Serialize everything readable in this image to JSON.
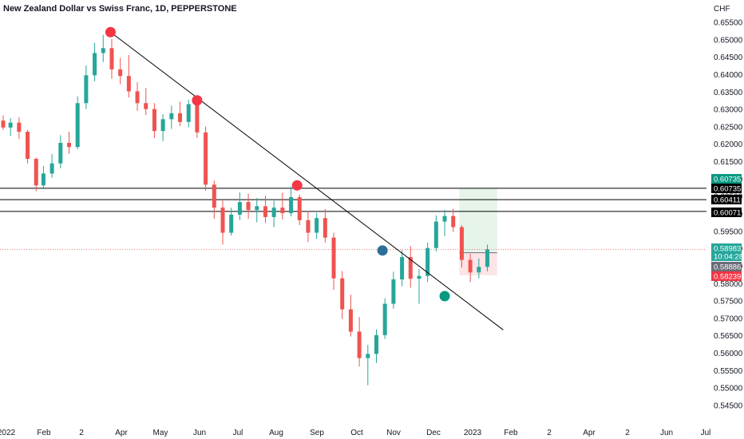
{
  "header": {
    "title": "New Zealand Dollar vs Swiss Franc, 1D, PEPPERSTONE"
  },
  "price_axis": {
    "currency": "CHF",
    "ticks": [
      "0.65500",
      "0.65000",
      "0.64500",
      "0.64000",
      "0.63500",
      "0.63000",
      "0.62500",
      "0.62000",
      "0.61500",
      "0.61000",
      "0.60500",
      "0.60000",
      "0.59500",
      "0.59000",
      "0.58500",
      "0.58000",
      "0.57500",
      "0.57000",
      "0.56500",
      "0.56000",
      "0.55500",
      "0.55000",
      "0.54500"
    ]
  },
  "time_axis": {
    "labels": [
      "2022",
      "Feb",
      "2",
      "Apr",
      "May",
      "Jun",
      "Jul",
      "Aug",
      "Sep",
      "Oct",
      "Nov",
      "Dec",
      "2023",
      "Feb",
      "2",
      "Apr",
      "2",
      "Jun",
      "Jul"
    ]
  },
  "price_tags": [
    {
      "label": "0.60735",
      "value": 0.60735,
      "bg": "#089981"
    },
    {
      "label": "0.60735",
      "value": 0.60735,
      "bg": "#000000"
    },
    {
      "label": "0.60411",
      "value": 0.60411,
      "bg": "#000000"
    },
    {
      "label": "0.60071",
      "value": 0.60071,
      "bg": "#000000"
    },
    {
      "label": "0.58983",
      "value": 0.58983,
      "bg": "#26a69a",
      "sub": "10:04:28"
    },
    {
      "label": "0.58886",
      "value": 0.58886,
      "bg": "#6a6d78"
    },
    {
      "label": "0.58239",
      "value": 0.58239,
      "bg": "#f23645"
    }
  ],
  "colors": {
    "up": "#26a69a",
    "down": "#ef5350",
    "trendline": "#000000",
    "marker_red": "#f23645",
    "marker_teal": "#089981",
    "marker_blue": "#2a6f97",
    "profit_zone": "#e6f4ea",
    "loss_zone": "#fde4e6"
  },
  "chart_data": {
    "type": "candlestick",
    "title": "New Zealand Dollar vs Swiss Franc, 1D, PEPPERSTONE",
    "y_unit": "CHF",
    "ylim": [
      0.543,
      0.657
    ],
    "x_range": [
      "2022-01-01",
      "2023-07-31"
    ],
    "grid": false,
    "trendline": {
      "from": {
        "date": "2022-03-30",
        "price": 0.6522
      },
      "to": {
        "date": "2023-02-15",
        "price": 0.5667
      }
    },
    "horizontal_levels": [
      0.60735,
      0.60411,
      0.60071
    ],
    "current_price": 0.58983,
    "position": {
      "entry": 0.58886,
      "target": 0.60735,
      "stop": 0.58239,
      "start": "2023-01-10",
      "end": "2023-02-10"
    },
    "markers": [
      {
        "date": "2022-03-30",
        "price": 0.6522,
        "color": "red"
      },
      {
        "date": "2022-06-09",
        "price": 0.6326,
        "color": "red"
      },
      {
        "date": "2022-08-30",
        "price": 0.6082,
        "color": "red"
      },
      {
        "date": "2022-11-08",
        "price": 0.5895,
        "color": "blue"
      },
      {
        "date": "2022-12-29",
        "price": 0.5764,
        "color": "teal"
      }
    ],
    "candles": [
      [
        "2022-01-01",
        0.6268,
        0.6283,
        0.6241,
        0.6248
      ],
      [
        "2022-01-07",
        0.6248,
        0.6275,
        0.6224,
        0.6262
      ],
      [
        "2022-01-14",
        0.6262,
        0.6278,
        0.6215,
        0.6236
      ],
      [
        "2022-01-21",
        0.6236,
        0.6241,
        0.6145,
        0.6158
      ],
      [
        "2022-01-28",
        0.6158,
        0.6162,
        0.6065,
        0.6082
      ],
      [
        "2022-02-03",
        0.6082,
        0.6138,
        0.6071,
        0.6116
      ],
      [
        "2022-02-10",
        0.6116,
        0.6172,
        0.6104,
        0.6145
      ],
      [
        "2022-02-17",
        0.6145,
        0.6226,
        0.6131,
        0.6204
      ],
      [
        "2022-02-24",
        0.6204,
        0.6236,
        0.6173,
        0.6192
      ],
      [
        "2022-03-03",
        0.6192,
        0.6338,
        0.6186,
        0.6318
      ],
      [
        "2022-03-10",
        0.6318,
        0.6426,
        0.6301,
        0.6398
      ],
      [
        "2022-03-17",
        0.6398,
        0.6491,
        0.6381,
        0.6462
      ],
      [
        "2022-03-24",
        0.6462,
        0.6514,
        0.6436,
        0.6476
      ],
      [
        "2022-03-31",
        0.6476,
        0.6502,
        0.6388,
        0.6415
      ],
      [
        "2022-04-07",
        0.6415,
        0.6448,
        0.6372,
        0.6396
      ],
      [
        "2022-04-14",
        0.6396,
        0.6456,
        0.6334,
        0.6352
      ],
      [
        "2022-04-21",
        0.6352,
        0.6378,
        0.6296,
        0.6318
      ],
      [
        "2022-04-28",
        0.6318,
        0.6362,
        0.6284,
        0.6301
      ],
      [
        "2022-05-05",
        0.6301,
        0.6318,
        0.6218,
        0.6238
      ],
      [
        "2022-05-12",
        0.6238,
        0.6286,
        0.6209,
        0.6272
      ],
      [
        "2022-05-19",
        0.6272,
        0.6311,
        0.6244,
        0.6289
      ],
      [
        "2022-05-26",
        0.6289,
        0.6322,
        0.6252,
        0.6264
      ],
      [
        "2022-06-02",
        0.6264,
        0.6328,
        0.6248,
        0.6315
      ],
      [
        "2022-06-09",
        0.6315,
        0.6326,
        0.6218,
        0.6234
      ],
      [
        "2022-06-16",
        0.6234,
        0.6251,
        0.6066,
        0.6084
      ],
      [
        "2022-06-23",
        0.6084,
        0.6095,
        0.5986,
        0.6018
      ],
      [
        "2022-06-30",
        0.6018,
        0.6038,
        0.5912,
        0.5946
      ],
      [
        "2022-07-07",
        0.5946,
        0.6018,
        0.5938,
        0.5998
      ],
      [
        "2022-07-14",
        0.5998,
        0.6062,
        0.5982,
        0.6034
      ],
      [
        "2022-07-21",
        0.6034,
        0.6058,
        0.5986,
        0.6011
      ],
      [
        "2022-07-28",
        0.6011,
        0.6046,
        0.5976,
        0.6022
      ],
      [
        "2022-08-04",
        0.6022,
        0.6052,
        0.5974,
        0.5991
      ],
      [
        "2022-08-11",
        0.5991,
        0.6038,
        0.5962,
        0.6018
      ],
      [
        "2022-08-18",
        0.6018,
        0.6061,
        0.5984,
        0.6002
      ],
      [
        "2022-08-25",
        0.6002,
        0.6078,
        0.5993,
        0.6048
      ],
      [
        "2022-09-01",
        0.6048,
        0.6056,
        0.5968,
        0.5982
      ],
      [
        "2022-09-08",
        0.5982,
        0.6008,
        0.5919,
        0.5946
      ],
      [
        "2022-09-15",
        0.5946,
        0.6003,
        0.5928,
        0.5988
      ],
      [
        "2022-09-22",
        0.5988,
        0.6014,
        0.5918,
        0.5932
      ],
      [
        "2022-09-29",
        0.5932,
        0.5946,
        0.5782,
        0.5815
      ],
      [
        "2022-10-06",
        0.5815,
        0.5836,
        0.5698,
        0.5726
      ],
      [
        "2022-10-13",
        0.5726,
        0.5768,
        0.5648,
        0.5662
      ],
      [
        "2022-10-20",
        0.5662,
        0.5704,
        0.5562,
        0.5586
      ],
      [
        "2022-10-27",
        0.5586,
        0.5624,
        0.5508,
        0.5598
      ],
      [
        "2022-11-03",
        0.5598,
        0.5668,
        0.5572,
        0.5652
      ],
      [
        "2022-11-10",
        0.5652,
        0.5758,
        0.5641,
        0.5742
      ],
      [
        "2022-11-17",
        0.5742,
        0.5834,
        0.5728,
        0.5812
      ],
      [
        "2022-11-24",
        0.5812,
        0.5896,
        0.5792,
        0.5876
      ],
      [
        "2022-12-01",
        0.5876,
        0.5908,
        0.5788,
        0.5814
      ],
      [
        "2022-12-08",
        0.5814,
        0.5842,
        0.5742,
        0.5822
      ],
      [
        "2022-12-15",
        0.5822,
        0.5918,
        0.5804,
        0.5902
      ],
      [
        "2022-12-22",
        0.5902,
        0.5996,
        0.5892,
        0.5978
      ],
      [
        "2022-12-29",
        0.5978,
        0.6012,
        0.5936,
        0.5994
      ],
      [
        "2023-01-05",
        0.5994,
        0.6015,
        0.5948,
        0.5962
      ],
      [
        "2023-01-12",
        0.5962,
        0.5968,
        0.5846,
        0.5868
      ],
      [
        "2023-01-19",
        0.5868,
        0.5885,
        0.5804,
        0.5832
      ],
      [
        "2023-01-26",
        0.5832,
        0.5872,
        0.5815,
        0.5848
      ],
      [
        "2023-02-02",
        0.5848,
        0.5912,
        0.5835,
        0.5898
      ]
    ]
  }
}
